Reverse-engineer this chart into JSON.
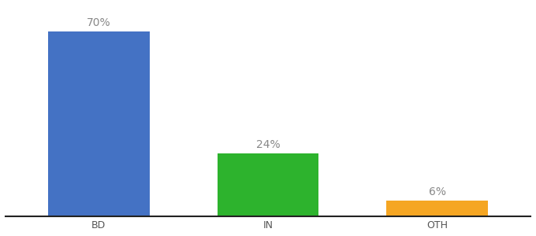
{
  "categories": [
    "BD",
    "IN",
    "OTH"
  ],
  "values": [
    70,
    24,
    6
  ],
  "bar_colors": [
    "#4472c4",
    "#2db32d",
    "#f5a623"
  ],
  "background_color": "#ffffff",
  "bar_width": 0.6,
  "ylim": [
    0,
    80
  ],
  "label_fontsize": 10,
  "tick_fontsize": 9,
  "label_color": "#888888",
  "tick_color": "#555555",
  "spine_color": "#222222"
}
